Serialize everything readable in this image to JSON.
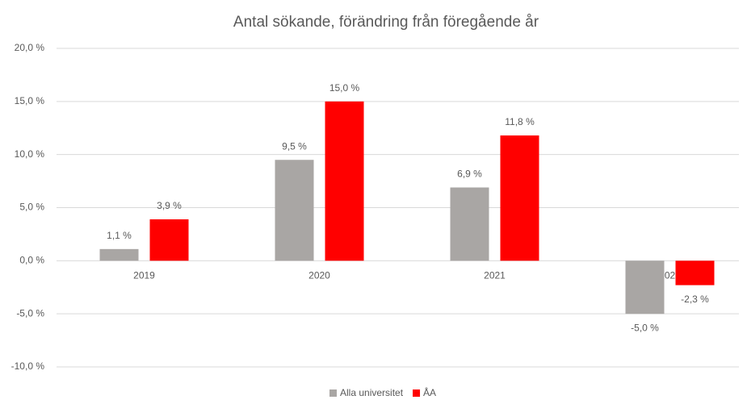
{
  "chart_data": {
    "type": "bar",
    "title": "Antal sökande, förändring från föregående år",
    "categories": [
      "2019",
      "2020",
      "2021",
      "2022"
    ],
    "series": [
      {
        "name": "Alla universitet",
        "color": "#a9a6a4",
        "values": [
          1.1,
          9.5,
          6.9,
          -5.0
        ],
        "value_labels": [
          "1,1 %",
          "9,5 %",
          "6,9 %",
          "-5,0 %"
        ]
      },
      {
        "name": "ÅA",
        "color": "#ff0000",
        "values": [
          3.9,
          15.0,
          11.8,
          -2.3
        ],
        "value_labels": [
          "3,9 %",
          "15,0 %",
          "11,8 %",
          "-2,3 %"
        ]
      }
    ],
    "ylim": [
      -10,
      20
    ],
    "yticks": [
      {
        "value": -10,
        "label": "-10,0 %"
      },
      {
        "value": -5,
        "label": "-5,0 %"
      },
      {
        "value": 0,
        "label": "0,0 %"
      },
      {
        "value": 5,
        "label": "5,0 %"
      },
      {
        "value": 10,
        "label": "10,0 %"
      },
      {
        "value": 15,
        "label": "15,0 %"
      },
      {
        "value": 20,
        "label": "20,0 %"
      }
    ],
    "grid": true,
    "legend": "bottom"
  }
}
